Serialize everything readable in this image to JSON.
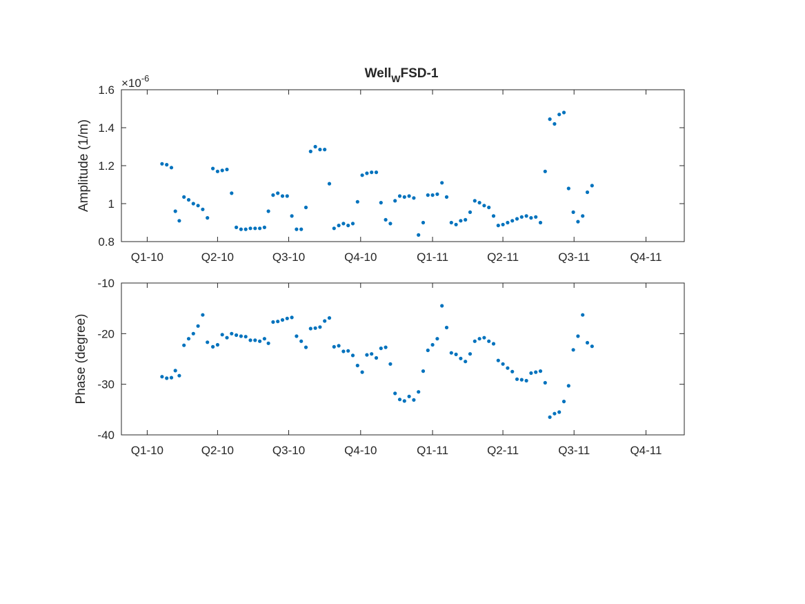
{
  "figure": {
    "title": {
      "main": "Well",
      "subscript": "W",
      "rest": "FSD-1"
    },
    "colors": {
      "marker": "#0072BD",
      "axes": "#262626",
      "background": "#ffffff"
    }
  },
  "chart_data": [
    {
      "type": "scatter",
      "xlabel": "",
      "ylabel": "Amplitude (1/m)",
      "exponent_label": "×10",
      "exponent_power": "-6",
      "ylim": [
        0.8,
        1.6
      ],
      "yticks": [
        0.8,
        1.0,
        1.2,
        1.4,
        1.6
      ],
      "ytick_labels": [
        "0.8",
        "1",
        "1.2",
        "1.4",
        "1.6"
      ],
      "xlim": [
        "2009-11-29",
        "2011-11-19"
      ],
      "xticks": [
        "2010-01-01",
        "2010-04-01",
        "2010-07-01",
        "2010-10-01",
        "2011-01-01",
        "2011-04-01",
        "2011-07-01",
        "2011-10-01"
      ],
      "xtick_labels": [
        "Q1-10",
        "Q2-10",
        "Q3-10",
        "Q4-10",
        "Q1-11",
        "Q2-11",
        "Q3-11",
        "Q4-11"
      ],
      "grid": false,
      "marker": "dot",
      "points": [
        [
          "2010-01-20",
          1.21
        ],
        [
          "2010-01-26",
          1.205
        ],
        [
          "2010-02-01",
          1.19
        ],
        [
          "2010-02-06",
          0.96
        ],
        [
          "2010-02-11",
          0.91
        ],
        [
          "2010-02-17",
          1.035
        ],
        [
          "2010-02-23",
          1.02
        ],
        [
          "2010-03-01",
          1.0
        ],
        [
          "2010-03-07",
          0.99
        ],
        [
          "2010-03-13",
          0.97
        ],
        [
          "2010-03-19",
          0.925
        ],
        [
          "2010-03-26",
          1.185
        ],
        [
          "2010-04-01",
          1.17
        ],
        [
          "2010-04-07",
          1.175
        ],
        [
          "2010-04-13",
          1.18
        ],
        [
          "2010-04-19",
          1.055
        ],
        [
          "2010-04-25",
          0.875
        ],
        [
          "2010-05-01",
          0.865
        ],
        [
          "2010-05-07",
          0.865
        ],
        [
          "2010-05-13",
          0.87
        ],
        [
          "2010-05-19",
          0.87
        ],
        [
          "2010-05-25",
          0.87
        ],
        [
          "2010-05-31",
          0.875
        ],
        [
          "2010-06-05",
          0.96
        ],
        [
          "2010-06-11",
          1.045
        ],
        [
          "2010-06-17",
          1.055
        ],
        [
          "2010-06-23",
          1.04
        ],
        [
          "2010-06-29",
          1.04
        ],
        [
          "2010-07-05",
          0.935
        ],
        [
          "2010-07-11",
          0.865
        ],
        [
          "2010-07-17",
          0.865
        ],
        [
          "2010-07-23",
          0.98
        ],
        [
          "2010-07-29",
          1.275
        ],
        [
          "2010-08-04",
          1.3
        ],
        [
          "2010-08-10",
          1.285
        ],
        [
          "2010-08-16",
          1.285
        ],
        [
          "2010-08-22",
          1.105
        ],
        [
          "2010-08-28",
          0.87
        ],
        [
          "2010-09-03",
          0.885
        ],
        [
          "2010-09-09",
          0.895
        ],
        [
          "2010-09-15",
          0.885
        ],
        [
          "2010-09-21",
          0.895
        ],
        [
          "2010-09-27",
          1.01
        ],
        [
          "2010-10-03",
          1.15
        ],
        [
          "2010-10-09",
          1.16
        ],
        [
          "2010-10-15",
          1.165
        ],
        [
          "2010-10-21",
          1.165
        ],
        [
          "2010-10-27",
          1.005
        ],
        [
          "2010-11-02",
          0.915
        ],
        [
          "2010-11-08",
          0.895
        ],
        [
          "2010-11-14",
          1.015
        ],
        [
          "2010-11-20",
          1.04
        ],
        [
          "2010-11-26",
          1.035
        ],
        [
          "2010-12-02",
          1.04
        ],
        [
          "2010-12-08",
          1.03
        ],
        [
          "2010-12-14",
          0.835
        ],
        [
          "2010-12-20",
          0.9
        ],
        [
          "2010-12-26",
          1.045
        ],
        [
          "2011-01-01",
          1.045
        ],
        [
          "2011-01-07",
          1.05
        ],
        [
          "2011-01-13",
          1.11
        ],
        [
          "2011-01-19",
          1.035
        ],
        [
          "2011-01-25",
          0.9
        ],
        [
          "2011-01-31",
          0.89
        ],
        [
          "2011-02-06",
          0.91
        ],
        [
          "2011-02-12",
          0.915
        ],
        [
          "2011-02-18",
          0.955
        ],
        [
          "2011-02-24",
          1.015
        ],
        [
          "2011-03-02",
          1.005
        ],
        [
          "2011-03-08",
          0.99
        ],
        [
          "2011-03-14",
          0.98
        ],
        [
          "2011-03-20",
          0.935
        ],
        [
          "2011-03-26",
          0.885
        ],
        [
          "2011-04-01",
          0.89
        ],
        [
          "2011-04-07",
          0.9
        ],
        [
          "2011-04-13",
          0.91
        ],
        [
          "2011-04-19",
          0.92
        ],
        [
          "2011-04-25",
          0.93
        ],
        [
          "2011-05-01",
          0.935
        ],
        [
          "2011-05-07",
          0.925
        ],
        [
          "2011-05-13",
          0.93
        ],
        [
          "2011-05-19",
          0.9
        ],
        [
          "2011-05-25",
          1.17
        ],
        [
          "2011-05-31",
          1.445
        ],
        [
          "2011-06-06",
          1.42
        ],
        [
          "2011-06-12",
          1.47
        ],
        [
          "2011-06-18",
          1.48
        ],
        [
          "2011-06-24",
          1.08
        ],
        [
          "2011-06-30",
          0.955
        ],
        [
          "2011-07-06",
          0.905
        ],
        [
          "2011-07-12",
          0.935
        ],
        [
          "2011-07-18",
          1.06
        ],
        [
          "2011-07-24",
          1.095
        ]
      ]
    },
    {
      "type": "scatter",
      "xlabel": "",
      "ylabel": "Phase (degree)",
      "ylim": [
        -40,
        -10
      ],
      "yticks": [
        -40,
        -30,
        -20,
        -10
      ],
      "ytick_labels": [
        "-40",
        "-30",
        "-20",
        "-10"
      ],
      "xlim": [
        "2009-11-29",
        "2011-11-19"
      ],
      "xticks": [
        "2010-01-01",
        "2010-04-01",
        "2010-07-01",
        "2010-10-01",
        "2011-01-01",
        "2011-04-01",
        "2011-07-01",
        "2011-10-01"
      ],
      "xtick_labels": [
        "Q1-10",
        "Q2-10",
        "Q3-10",
        "Q4-10",
        "Q1-11",
        "Q2-11",
        "Q3-11",
        "Q4-11"
      ],
      "grid": false,
      "marker": "dot",
      "points": [
        [
          "2010-01-20",
          -28.5
        ],
        [
          "2010-01-26",
          -28.8
        ],
        [
          "2010-02-01",
          -28.7
        ],
        [
          "2010-02-06",
          -27.3
        ],
        [
          "2010-02-11",
          -28.3
        ],
        [
          "2010-02-17",
          -22.3
        ],
        [
          "2010-02-23",
          -21.0
        ],
        [
          "2010-03-01",
          -20.0
        ],
        [
          "2010-03-07",
          -18.5
        ],
        [
          "2010-03-13",
          -16.3
        ],
        [
          "2010-03-19",
          -21.7
        ],
        [
          "2010-03-26",
          -22.6
        ],
        [
          "2010-04-01",
          -22.2
        ],
        [
          "2010-04-07",
          -20.2
        ],
        [
          "2010-04-13",
          -20.8
        ],
        [
          "2010-04-19",
          -20.0
        ],
        [
          "2010-04-25",
          -20.3
        ],
        [
          "2010-05-01",
          -20.5
        ],
        [
          "2010-05-07",
          -20.6
        ],
        [
          "2010-05-13",
          -21.3
        ],
        [
          "2010-05-19",
          -21.3
        ],
        [
          "2010-05-25",
          -21.5
        ],
        [
          "2010-05-31",
          -21.0
        ],
        [
          "2010-06-05",
          -21.9
        ],
        [
          "2010-06-11",
          -17.7
        ],
        [
          "2010-06-17",
          -17.6
        ],
        [
          "2010-06-23",
          -17.3
        ],
        [
          "2010-06-29",
          -17.0
        ],
        [
          "2010-07-05",
          -16.8
        ],
        [
          "2010-07-11",
          -20.5
        ],
        [
          "2010-07-17",
          -21.5
        ],
        [
          "2010-07-23",
          -22.7
        ],
        [
          "2010-07-29",
          -19.0
        ],
        [
          "2010-08-04",
          -18.9
        ],
        [
          "2010-08-10",
          -18.7
        ],
        [
          "2010-08-16",
          -17.5
        ],
        [
          "2010-08-22",
          -16.9
        ],
        [
          "2010-08-28",
          -22.6
        ],
        [
          "2010-09-03",
          -22.4
        ],
        [
          "2010-09-09",
          -23.5
        ],
        [
          "2010-09-15",
          -23.4
        ],
        [
          "2010-09-21",
          -24.3
        ],
        [
          "2010-09-27",
          -26.3
        ],
        [
          "2010-10-03",
          -27.6
        ],
        [
          "2010-10-09",
          -24.2
        ],
        [
          "2010-10-15",
          -24.0
        ],
        [
          "2010-10-21",
          -24.8
        ],
        [
          "2010-10-27",
          -22.9
        ],
        [
          "2010-11-02",
          -22.7
        ],
        [
          "2010-11-08",
          -26.0
        ],
        [
          "2010-11-14",
          -31.8
        ],
        [
          "2010-11-20",
          -33.0
        ],
        [
          "2010-11-26",
          -33.3
        ],
        [
          "2010-12-02",
          -32.4
        ],
        [
          "2010-12-08",
          -33.1
        ],
        [
          "2010-12-14",
          -31.5
        ],
        [
          "2010-12-20",
          -27.4
        ],
        [
          "2010-12-26",
          -23.3
        ],
        [
          "2011-01-01",
          -22.2
        ],
        [
          "2011-01-07",
          -21.0
        ],
        [
          "2011-01-13",
          -14.5
        ],
        [
          "2011-01-19",
          -18.8
        ],
        [
          "2011-01-25",
          -23.8
        ],
        [
          "2011-01-31",
          -24.1
        ],
        [
          "2011-02-06",
          -24.9
        ],
        [
          "2011-02-12",
          -25.5
        ],
        [
          "2011-02-18",
          -24.0
        ],
        [
          "2011-02-24",
          -21.5
        ],
        [
          "2011-03-02",
          -21.0
        ],
        [
          "2011-03-08",
          -20.8
        ],
        [
          "2011-03-14",
          -21.5
        ],
        [
          "2011-03-20",
          -22.0
        ],
        [
          "2011-03-26",
          -25.3
        ],
        [
          "2011-04-01",
          -26.0
        ],
        [
          "2011-04-07",
          -26.8
        ],
        [
          "2011-04-13",
          -27.5
        ],
        [
          "2011-04-19",
          -29.0
        ],
        [
          "2011-04-25",
          -29.1
        ],
        [
          "2011-05-01",
          -29.3
        ],
        [
          "2011-05-07",
          -27.8
        ],
        [
          "2011-05-13",
          -27.6
        ],
        [
          "2011-05-19",
          -27.4
        ],
        [
          "2011-05-25",
          -29.7
        ],
        [
          "2011-05-31",
          -36.5
        ],
        [
          "2011-06-06",
          -35.8
        ],
        [
          "2011-06-12",
          -35.5
        ],
        [
          "2011-06-18",
          -33.4
        ],
        [
          "2011-06-24",
          -30.3
        ],
        [
          "2011-06-30",
          -23.2
        ],
        [
          "2011-07-06",
          -20.5
        ],
        [
          "2011-07-12",
          -16.3
        ],
        [
          "2011-07-18",
          -21.8
        ],
        [
          "2011-07-24",
          -22.5
        ]
      ]
    }
  ]
}
